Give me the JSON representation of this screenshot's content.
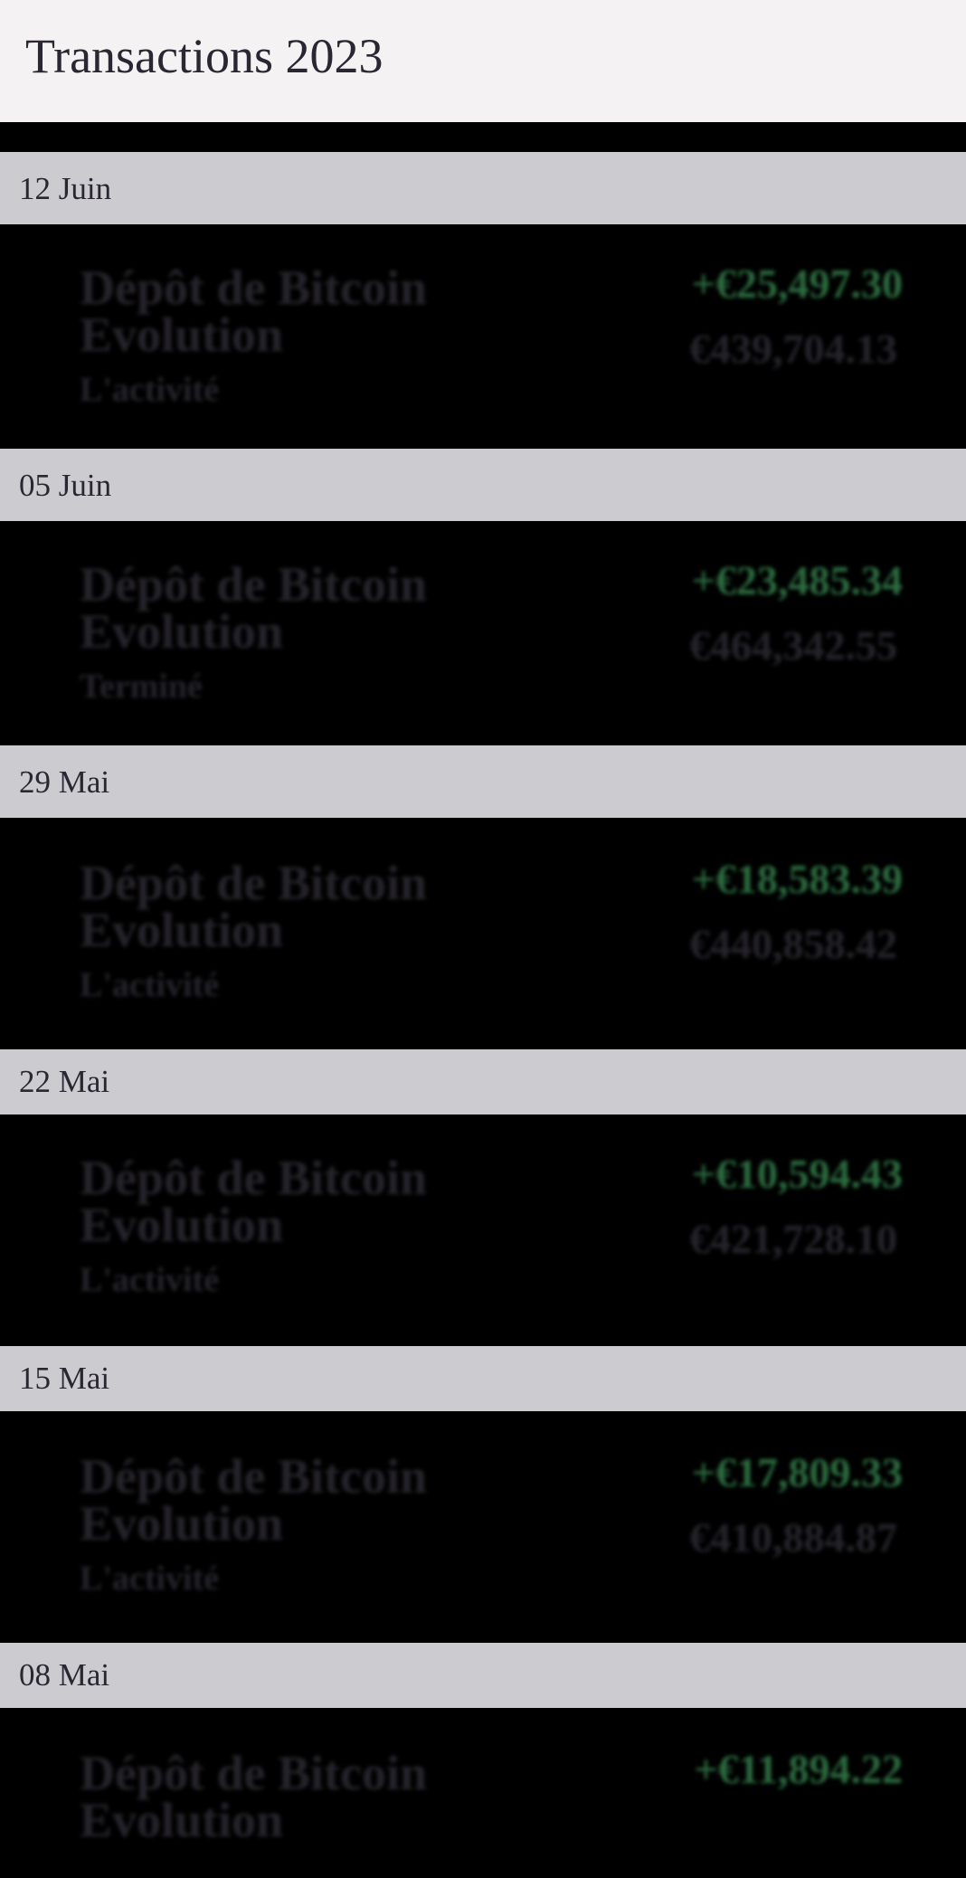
{
  "header": {
    "title": "Transactions 2023"
  },
  "groups": [
    {
      "date": "12 Juin",
      "transaction": {
        "title": "Dépôt de Bitcoin Evolution",
        "type": "L'activité",
        "amount": "+€25,497.30",
        "balance": "€439,704.13"
      }
    },
    {
      "date": "05 Juin",
      "transaction": {
        "title": "Dépôt de Bitcoin Evolution",
        "type": "Terminé",
        "amount": "+€23,485.34",
        "balance": "€464,342.55"
      }
    },
    {
      "date": "29 Mai",
      "transaction": {
        "title": "Dépôt de Bitcoin Evolution",
        "type": "L'activité",
        "amount": "+€18,583.39",
        "balance": "€440,858.42"
      }
    },
    {
      "date": "22 Mai",
      "transaction": {
        "title": "Dépôt de Bitcoin Evolution",
        "type": "L'activité",
        "amount": "+€10,594.43",
        "balance": "€421,728.10"
      }
    },
    {
      "date": "15 Mai",
      "transaction": {
        "title": "Dépôt de Bitcoin Evolution",
        "type": "L'activité",
        "amount": "+€17,809.33",
        "balance": "€410,884.87"
      }
    },
    {
      "date": "08 Mai",
      "transaction": {
        "title": "Dépôt de Bitcoin Evolution",
        "type": "",
        "amount": "+€11,894.22",
        "balance": ""
      }
    }
  ],
  "colors": {
    "header_bg": "#f5f2f3",
    "date_bar_bg": "#cccbcf",
    "row_bg": "#000000",
    "positive_amount": "#2c6b3f",
    "text_dark": "#2a2733"
  }
}
